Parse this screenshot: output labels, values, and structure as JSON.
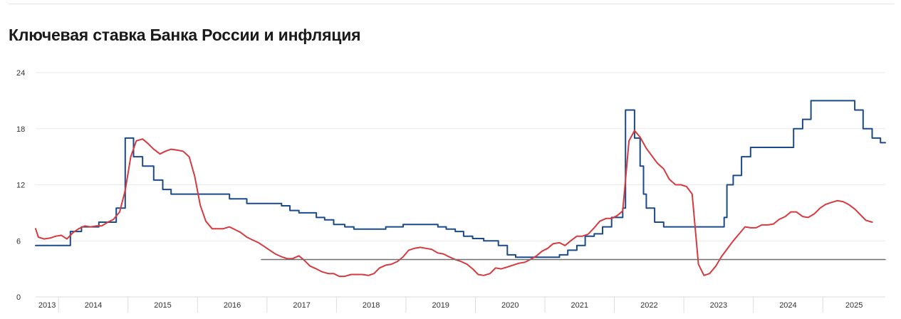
{
  "title": "Ключевая ставка Банка России и инфляция",
  "chart_data": {
    "type": "line",
    "title": "Ключевая ставка Банка России и инфляция",
    "xlabel": "",
    "ylabel": "",
    "ylim": [
      0,
      24
    ],
    "y_ticks": [
      "0",
      "6",
      "12",
      "18",
      "24"
    ],
    "x_ticks": [
      "2013",
      "2014",
      "2015",
      "2016",
      "2017",
      "2018",
      "2019",
      "2020",
      "2021",
      "2022",
      "2023",
      "2024",
      "2025"
    ],
    "xlim": [
      2013.67,
      2025.9
    ],
    "grid": true,
    "legend": "none",
    "series": [
      {
        "name": "",
        "color": "#1a4a8a",
        "step": true,
        "points": [
          [
            2013.67,
            5.5
          ],
          [
            2014.17,
            7.0
          ],
          [
            2014.33,
            7.5
          ],
          [
            2014.58,
            8.0
          ],
          [
            2014.83,
            9.5
          ],
          [
            2014.96,
            17.0
          ],
          [
            2015.08,
            15.0
          ],
          [
            2015.21,
            14.0
          ],
          [
            2015.37,
            12.5
          ],
          [
            2015.5,
            11.5
          ],
          [
            2015.62,
            11.0
          ],
          [
            2016.46,
            10.5
          ],
          [
            2016.71,
            10.0
          ],
          [
            2017.21,
            9.75
          ],
          [
            2017.33,
            9.25
          ],
          [
            2017.46,
            9.0
          ],
          [
            2017.71,
            8.5
          ],
          [
            2017.83,
            8.25
          ],
          [
            2017.96,
            7.75
          ],
          [
            2018.12,
            7.5
          ],
          [
            2018.25,
            7.25
          ],
          [
            2018.71,
            7.5
          ],
          [
            2018.96,
            7.75
          ],
          [
            2019.46,
            7.5
          ],
          [
            2019.58,
            7.25
          ],
          [
            2019.71,
            7.0
          ],
          [
            2019.83,
            6.5
          ],
          [
            2019.96,
            6.25
          ],
          [
            2020.12,
            6.0
          ],
          [
            2020.33,
            5.5
          ],
          [
            2020.46,
            4.5
          ],
          [
            2020.58,
            4.25
          ],
          [
            2021.21,
            4.5
          ],
          [
            2021.33,
            5.0
          ],
          [
            2021.46,
            5.5
          ],
          [
            2021.58,
            6.5
          ],
          [
            2021.71,
            6.75
          ],
          [
            2021.83,
            7.5
          ],
          [
            2021.96,
            8.5
          ],
          [
            2022.12,
            9.5
          ],
          [
            2022.16,
            20.0
          ],
          [
            2022.29,
            17.0
          ],
          [
            2022.37,
            14.0
          ],
          [
            2022.42,
            11.0
          ],
          [
            2022.46,
            9.5
          ],
          [
            2022.58,
            8.0
          ],
          [
            2022.71,
            7.5
          ],
          [
            2023.58,
            8.5
          ],
          [
            2023.62,
            12.0
          ],
          [
            2023.71,
            13.0
          ],
          [
            2023.83,
            15.0
          ],
          [
            2023.96,
            16.0
          ],
          [
            2024.58,
            18.0
          ],
          [
            2024.71,
            19.0
          ],
          [
            2024.83,
            21.0
          ],
          [
            2025.46,
            20.0
          ],
          [
            2025.58,
            18.0
          ],
          [
            2025.71,
            17.0
          ],
          [
            2025.83,
            16.5
          ],
          [
            2025.9,
            16.5
          ]
        ]
      },
      {
        "name": "",
        "color": "#d63a3f",
        "step": false,
        "points": [
          [
            2013.67,
            7.3
          ],
          [
            2013.71,
            6.4
          ],
          [
            2013.79,
            6.2
          ],
          [
            2013.88,
            6.3
          ],
          [
            2013.96,
            6.5
          ],
          [
            2014.04,
            6.6
          ],
          [
            2014.12,
            6.2
          ],
          [
            2014.21,
            6.9
          ],
          [
            2014.29,
            7.3
          ],
          [
            2014.38,
            7.6
          ],
          [
            2014.46,
            7.5
          ],
          [
            2014.54,
            7.6
          ],
          [
            2014.62,
            7.6
          ],
          [
            2014.71,
            8.0
          ],
          [
            2014.79,
            8.3
          ],
          [
            2014.88,
            9.1
          ],
          [
            2014.96,
            11.4
          ],
          [
            2015.04,
            15.0
          ],
          [
            2015.12,
            16.7
          ],
          [
            2015.21,
            16.9
          ],
          [
            2015.29,
            16.4
          ],
          [
            2015.37,
            15.8
          ],
          [
            2015.46,
            15.3
          ],
          [
            2015.54,
            15.6
          ],
          [
            2015.62,
            15.8
          ],
          [
            2015.71,
            15.7
          ],
          [
            2015.79,
            15.6
          ],
          [
            2015.88,
            15.0
          ],
          [
            2015.96,
            12.9
          ],
          [
            2016.04,
            9.8
          ],
          [
            2016.12,
            8.1
          ],
          [
            2016.21,
            7.3
          ],
          [
            2016.29,
            7.3
          ],
          [
            2016.37,
            7.3
          ],
          [
            2016.46,
            7.5
          ],
          [
            2016.54,
            7.2
          ],
          [
            2016.62,
            6.9
          ],
          [
            2016.71,
            6.4
          ],
          [
            2016.79,
            6.1
          ],
          [
            2016.88,
            5.8
          ],
          [
            2016.96,
            5.4
          ],
          [
            2017.04,
            5.0
          ],
          [
            2017.12,
            4.6
          ],
          [
            2017.21,
            4.3
          ],
          [
            2017.29,
            4.1
          ],
          [
            2017.37,
            4.1
          ],
          [
            2017.46,
            4.4
          ],
          [
            2017.54,
            3.9
          ],
          [
            2017.62,
            3.3
          ],
          [
            2017.71,
            3.0
          ],
          [
            2017.79,
            2.7
          ],
          [
            2017.88,
            2.5
          ],
          [
            2017.96,
            2.5
          ],
          [
            2018.04,
            2.2
          ],
          [
            2018.12,
            2.2
          ],
          [
            2018.21,
            2.4
          ],
          [
            2018.29,
            2.4
          ],
          [
            2018.37,
            2.4
          ],
          [
            2018.46,
            2.3
          ],
          [
            2018.54,
            2.5
          ],
          [
            2018.62,
            3.1
          ],
          [
            2018.71,
            3.4
          ],
          [
            2018.79,
            3.5
          ],
          [
            2018.88,
            3.8
          ],
          [
            2018.96,
            4.3
          ],
          [
            2019.04,
            5.0
          ],
          [
            2019.12,
            5.2
          ],
          [
            2019.21,
            5.3
          ],
          [
            2019.29,
            5.2
          ],
          [
            2019.37,
            5.1
          ],
          [
            2019.46,
            4.7
          ],
          [
            2019.54,
            4.6
          ],
          [
            2019.62,
            4.3
          ],
          [
            2019.71,
            4.0
          ],
          [
            2019.79,
            3.8
          ],
          [
            2019.88,
            3.5
          ],
          [
            2019.96,
            3.0
          ],
          [
            2020.04,
            2.4
          ],
          [
            2020.12,
            2.3
          ],
          [
            2020.21,
            2.5
          ],
          [
            2020.29,
            3.1
          ],
          [
            2020.37,
            3.0
          ],
          [
            2020.46,
            3.2
          ],
          [
            2020.54,
            3.4
          ],
          [
            2020.62,
            3.6
          ],
          [
            2020.71,
            3.7
          ],
          [
            2020.79,
            4.0
          ],
          [
            2020.88,
            4.4
          ],
          [
            2020.96,
            4.9
          ],
          [
            2021.04,
            5.2
          ],
          [
            2021.12,
            5.7
          ],
          [
            2021.21,
            5.8
          ],
          [
            2021.29,
            5.5
          ],
          [
            2021.37,
            6.0
          ],
          [
            2021.46,
            6.5
          ],
          [
            2021.54,
            6.5
          ],
          [
            2021.62,
            6.7
          ],
          [
            2021.71,
            7.4
          ],
          [
            2021.79,
            8.1
          ],
          [
            2021.88,
            8.4
          ],
          [
            2021.96,
            8.4
          ],
          [
            2022.04,
            8.7
          ],
          [
            2022.12,
            9.2
          ],
          [
            2022.21,
            16.7
          ],
          [
            2022.29,
            17.8
          ],
          [
            2022.37,
            17.1
          ],
          [
            2022.46,
            15.9
          ],
          [
            2022.54,
            15.1
          ],
          [
            2022.62,
            14.3
          ],
          [
            2022.71,
            13.7
          ],
          [
            2022.79,
            12.6
          ],
          [
            2022.88,
            12.0
          ],
          [
            2022.96,
            12.0
          ],
          [
            2023.04,
            11.8
          ],
          [
            2023.12,
            11.0
          ],
          [
            2023.21,
            3.5
          ],
          [
            2023.29,
            2.3
          ],
          [
            2023.37,
            2.5
          ],
          [
            2023.46,
            3.3
          ],
          [
            2023.54,
            4.3
          ],
          [
            2023.62,
            5.1
          ],
          [
            2023.71,
            6.0
          ],
          [
            2023.79,
            6.7
          ],
          [
            2023.88,
            7.5
          ],
          [
            2023.96,
            7.4
          ],
          [
            2024.04,
            7.4
          ],
          [
            2024.12,
            7.7
          ],
          [
            2024.21,
            7.7
          ],
          [
            2024.29,
            7.8
          ],
          [
            2024.37,
            8.3
          ],
          [
            2024.46,
            8.6
          ],
          [
            2024.54,
            9.1
          ],
          [
            2024.62,
            9.1
          ],
          [
            2024.71,
            8.6
          ],
          [
            2024.79,
            8.5
          ],
          [
            2024.88,
            8.9
          ],
          [
            2024.96,
            9.5
          ],
          [
            2025.04,
            9.9
          ],
          [
            2025.12,
            10.1
          ],
          [
            2025.21,
            10.3
          ],
          [
            2025.29,
            10.2
          ],
          [
            2025.37,
            9.9
          ],
          [
            2025.46,
            9.4
          ],
          [
            2025.54,
            8.8
          ],
          [
            2025.62,
            8.2
          ],
          [
            2025.71,
            8.0
          ]
        ]
      },
      {
        "name": "",
        "color": "#6e6e6e",
        "step": false,
        "points": [
          [
            2016.92,
            4.0
          ],
          [
            2025.9,
            4.0
          ]
        ]
      }
    ]
  }
}
